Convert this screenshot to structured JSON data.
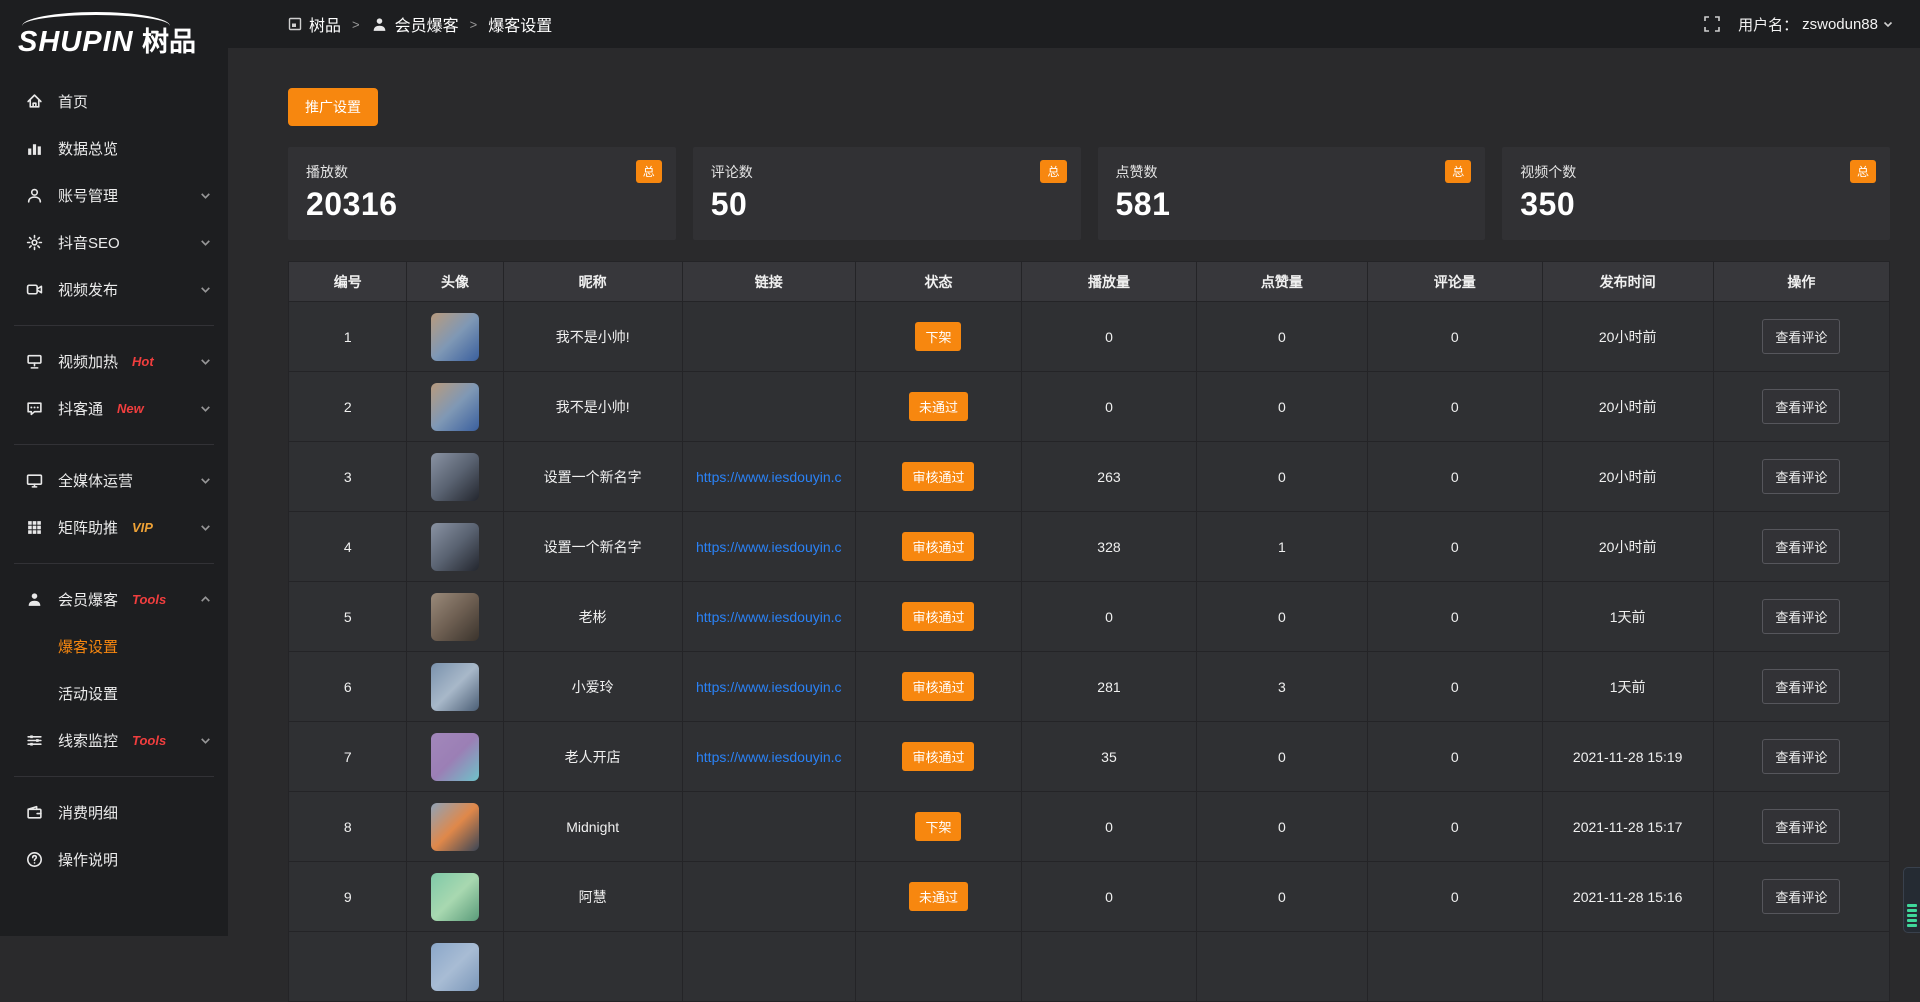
{
  "logo": {
    "text_en": "SHUPIN",
    "text_cn": "树品"
  },
  "topbar": {
    "breadcrumb": [
      {
        "icon": "app-icon",
        "label": "树品"
      },
      {
        "icon": "member-icon",
        "label": "会员爆客"
      },
      {
        "icon": null,
        "label": "爆客设置"
      }
    ],
    "separator": ">",
    "username_label": "用户名：",
    "username": "zswodun88"
  },
  "sidebar": {
    "items": [
      {
        "icon": "home-icon",
        "label": "首页"
      },
      {
        "icon": "chart-icon",
        "label": "数据总览"
      },
      {
        "icon": "user-icon",
        "label": "账号管理",
        "chevron": "down"
      },
      {
        "icon": "gear-icon",
        "label": "抖音SEO",
        "chevron": "down"
      },
      {
        "icon": "video-icon",
        "label": "视频发布",
        "chevron": "down"
      },
      {
        "divider": true
      },
      {
        "icon": "heat-icon",
        "label": "视频加热",
        "badge": "Hot",
        "badge_color": "red",
        "chevron": "down"
      },
      {
        "icon": "chat-icon",
        "label": "抖客通",
        "badge": "New",
        "badge_color": "red",
        "chevron": "down"
      },
      {
        "divider": true
      },
      {
        "icon": "monitor-icon",
        "label": "全媒体运营",
        "chevron": "down"
      },
      {
        "icon": "grid-icon",
        "label": "矩阵助推",
        "badge": "VIP",
        "badge_color": "gold",
        "chevron": "down"
      },
      {
        "divider": true
      },
      {
        "icon": "member-icon",
        "label": "会员爆客",
        "badge": "Tools",
        "badge_color": "red",
        "chevron": "up"
      },
      {
        "sub": true,
        "label": "爆客设置",
        "active": true
      },
      {
        "sub": true,
        "label": "活动设置"
      },
      {
        "icon": "sliders-icon",
        "label": "线索监控",
        "badge": "Tools",
        "badge_color": "red",
        "chevron": "down"
      },
      {
        "divider": true
      },
      {
        "icon": "wallet-icon",
        "label": "消费明细"
      },
      {
        "icon": "help-icon",
        "label": "操作说明"
      }
    ]
  },
  "main": {
    "promo_button": "推广设置",
    "stat_cards": [
      {
        "label": "播放数",
        "value": "20316",
        "badge": "总"
      },
      {
        "label": "评论数",
        "value": "50",
        "badge": "总"
      },
      {
        "label": "点赞数",
        "value": "581",
        "badge": "总"
      },
      {
        "label": "视频个数",
        "value": "350",
        "badge": "总"
      }
    ],
    "table": {
      "columns": [
        "编号",
        "头像",
        "昵称",
        "链接",
        "状态",
        "播放量",
        "点赞量",
        "评论量",
        "发布时间",
        "操作"
      ],
      "col_widths": [
        "7.4%",
        "6.0%",
        "11.2%",
        "10.8%",
        "10.4%",
        "10.9%",
        "10.7%",
        "10.9%",
        "10.7%",
        "11.0%"
      ],
      "action_label": "查看评论",
      "rows": [
        {
          "no": "1",
          "avatar_colors": [
            "#b89b7e",
            "#7f98b5",
            "#3a5f9e"
          ],
          "nickname": "我不是小帅!",
          "link": "",
          "status": "下架",
          "plays": "0",
          "likes": "0",
          "comments": "0",
          "time": "20小时前",
          "action": "查看评论"
        },
        {
          "no": "2",
          "avatar_colors": [
            "#b89b7e",
            "#7f98b5",
            "#3a5f9e"
          ],
          "nickname": "我不是小帅!",
          "link": "",
          "status": "未通过",
          "plays": "0",
          "likes": "0",
          "comments": "0",
          "time": "20小时前",
          "action": "查看评论"
        },
        {
          "no": "3",
          "avatar_colors": [
            "#8a93a3",
            "#5a6372",
            "#23262e"
          ],
          "nickname": "设置一个新名字",
          "link": "https://www.iesdouyin.c",
          "status": "审核通过",
          "plays": "263",
          "likes": "0",
          "comments": "0",
          "time": "20小时前",
          "action": "查看评论"
        },
        {
          "no": "4",
          "avatar_colors": [
            "#8a93a3",
            "#5a6372",
            "#23262e"
          ],
          "nickname": "设置一个新名字",
          "link": "https://www.iesdouyin.c",
          "status": "审核通过",
          "plays": "328",
          "likes": "1",
          "comments": "0",
          "time": "20小时前",
          "action": "查看评论"
        },
        {
          "no": "5",
          "avatar_colors": [
            "#9a8a7a",
            "#6e5f52",
            "#3a332c"
          ],
          "nickname": "老彬",
          "link": "https://www.iesdouyin.c",
          "status": "审核通过",
          "plays": "0",
          "likes": "0",
          "comments": "0",
          "time": "1天前",
          "action": "查看评论"
        },
        {
          "no": "6",
          "avatar_colors": [
            "#7a92ad",
            "#a8b8c9",
            "#4b5e75"
          ],
          "nickname": "小爱玲",
          "link": "https://www.iesdouyin.c",
          "status": "审核通过",
          "plays": "281",
          "likes": "3",
          "comments": "0",
          "time": "1天前",
          "action": "查看评论"
        },
        {
          "no": "7",
          "avatar_colors": [
            "#a287bb",
            "#9b7fb5",
            "#6fc2c9"
          ],
          "nickname": "老人开店",
          "link": "https://www.iesdouyin.c",
          "status": "审核通过",
          "plays": "35",
          "likes": "0",
          "comments": "0",
          "time": "2021-11-28 15:19",
          "action": "查看评论"
        },
        {
          "no": "8",
          "avatar_colors": [
            "#8fa3b8",
            "#e0884a",
            "#3a4556"
          ],
          "nickname": "Midnight",
          "link": "",
          "status": "下架",
          "plays": "0",
          "likes": "0",
          "comments": "0",
          "time": "2021-11-28 15:17",
          "action": "查看评论"
        },
        {
          "no": "9",
          "avatar_colors": [
            "#7fc9a8",
            "#a8d8b0",
            "#5a9b7a"
          ],
          "nickname": "阿慧",
          "link": "",
          "status": "未通过",
          "plays": "0",
          "likes": "0",
          "comments": "0",
          "time": "2021-11-28 15:16",
          "action": "查看评论"
        },
        {
          "no": "",
          "avatar_colors": [
            "#8ba7c9",
            "#a8bcd4",
            "#7b97b9"
          ],
          "nickname": "",
          "link": "",
          "status": "",
          "plays": "",
          "likes": "",
          "comments": "",
          "time": "",
          "action": "",
          "partial": true
        }
      ]
    }
  },
  "colors": {
    "accent": "#f7870f",
    "link_blue": "#2a82f7",
    "badge_red": "#f03e3e",
    "badge_gold": "#eea236",
    "status_badge": "#f7870f"
  }
}
